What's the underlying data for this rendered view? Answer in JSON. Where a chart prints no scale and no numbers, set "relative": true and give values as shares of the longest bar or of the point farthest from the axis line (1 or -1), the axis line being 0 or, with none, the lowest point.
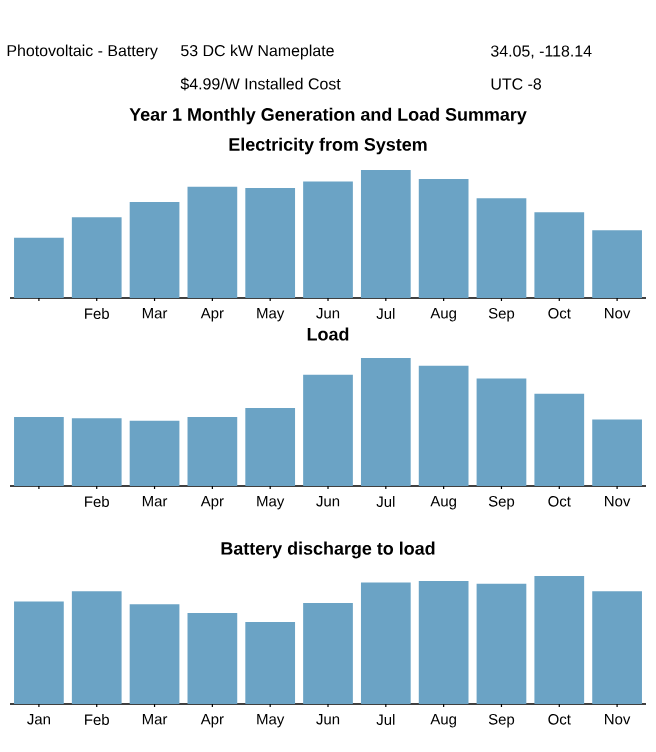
{
  "chart_data": [
    {
      "type": "bar",
      "title": "Year 1 Monthly Generation and Load Summary",
      "subtitle": "Electricity from System",
      "annotations": [
        "Photovoltaic - Battery",
        "53 DC kW Nameplate",
        "34.05, -118.14",
        "$4.99/W Installed Cost",
        "UTC -8"
      ],
      "relative": true,
      "color": "#6ba3c5",
      "categories": [
        null,
        "Feb",
        "Mar",
        "Apr",
        "May",
        "Jun",
        "Jul",
        "Aug",
        "Sep",
        "Oct",
        "Nov"
      ],
      "values": [
        0.47,
        0.63,
        0.75,
        0.87,
        0.86,
        0.91,
        1,
        0.93,
        0.78,
        0.67,
        0.53
      ]
    },
    {
      "type": "bar",
      "title": "Load",
      "relative": true,
      "color": "#6ba3c5",
      "categories": [
        null,
        "Feb",
        "Mar",
        "Apr",
        "May",
        "Jun",
        "Jul",
        "Aug",
        "Sep",
        "Oct",
        "Nov"
      ],
      "values": [
        0.54,
        0.53,
        0.51,
        0.54,
        0.61,
        0.87,
        1,
        0.94,
        0.84,
        0.72,
        0.52
      ]
    },
    {
      "type": "bar",
      "title": "Battery discharge to load",
      "relative": true,
      "color": "#6ba3c5",
      "categories": [
        "Jan",
        "Feb",
        "Mar",
        "Apr",
        "May",
        "Jun",
        "Jul",
        "Aug",
        "Sep",
        "Oct",
        "Nov"
      ],
      "values": [
        0.8,
        0.88,
        0.78,
        0.71,
        0.64,
        0.79,
        0.95,
        0.96,
        0.94,
        1,
        0.88
      ]
    }
  ]
}
